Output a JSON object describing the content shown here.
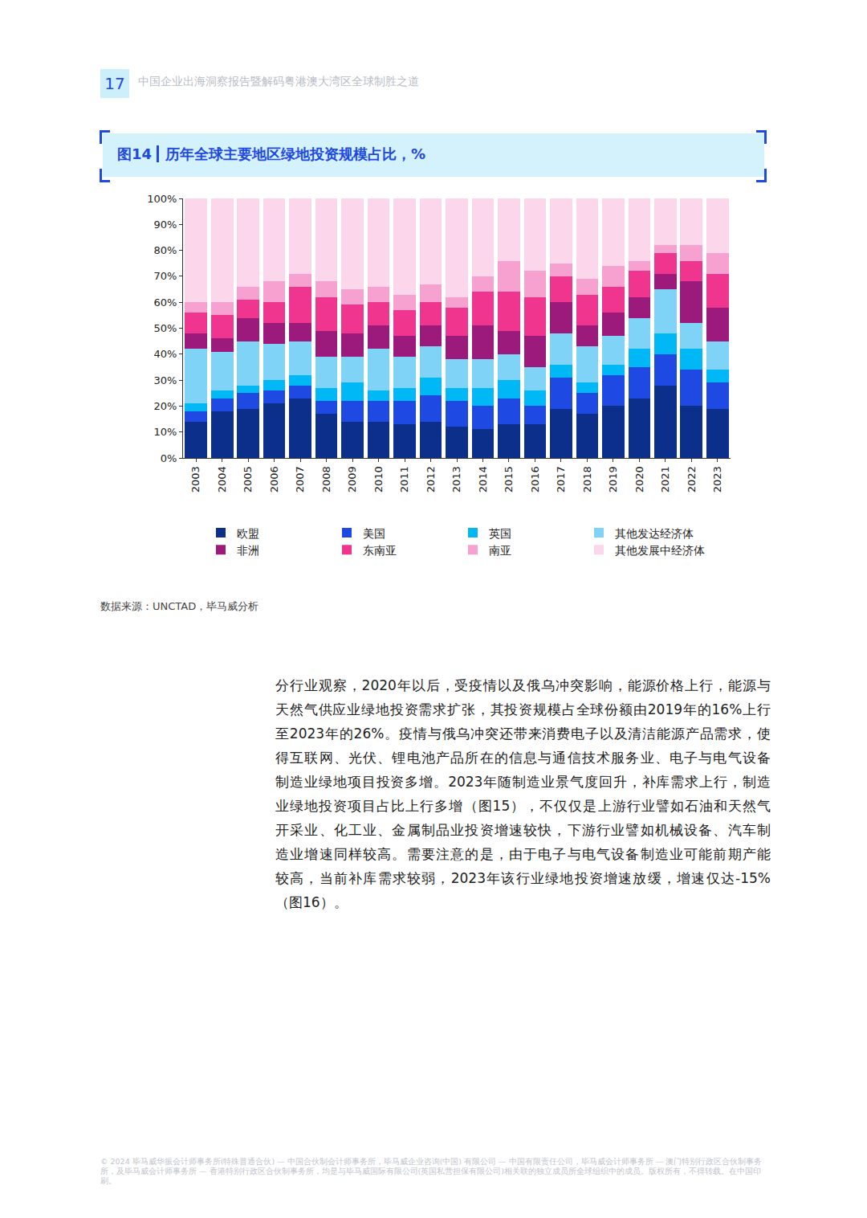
{
  "page_number": "17",
  "header_title": "中国企业出海洞察报告暨解码粤港澳大湾区全球制胜之道",
  "figure_label": "图14",
  "source": "数据来源：UNCTAD，毕马威分析",
  "paragraph": [
    "分行业观察，2020年以后，受疫情以及俄乌冲突影响，能源价格上行，能源与",
    "天然气供应业绿地投资需求扩张，其投资规模占全球份额由2019年的16%上行",
    "至2023年的26%。疫情与俄乌冲突还带来消费电子以及清洁能源产品需求，使",
    "得互联网、光伏、锂电池产品所在的信息与通信技术服务业、电子与电气设备",
    "制造业绿地项目投资多增。2023年随制造业景气度回升，补库需求上行，制造",
    "业绿地投资项目占比上行多增（图15），不仅仅是上游行业譬如石油和天然气",
    "开采业、化工业、金属制品业投资增速较快，下游行业譬如机械设备、汽车制",
    "造业增速同样较高。需要注意的是，由于电子与电气设备制造业可能前期产能",
    "较高，当前补库需求较弱，2023年该行业绿地投资增速放缓，增速仅达-15%",
    "（图16）。"
  ],
  "footer": "© 2024 毕马威华振会计师事务所(特殊普通合伙) — 中国合伙制会计师事务所，毕马威企业咨询(中国) 有限公司 — 中国有限责任公司，毕马威会计师事务所 — 澳门特别行政区合伙制事务所，及毕马威会计师事务所 — 香港特别行政区合伙制事务所，均是与毕马威国际有限公司(英国私营担保有限公司)相关联的独立成员所全球组织中的成员。版权所有，不得转载。在中国印刷。",
  "chart_data": {
    "type": "bar",
    "stacked": true,
    "title": "历年全球主要地区绿地投资规模占比，%",
    "categories": [
      "2003",
      "2004",
      "2005",
      "2006",
      "2007",
      "2008",
      "2009",
      "2010",
      "2011",
      "2012",
      "2013",
      "2014",
      "2015",
      "2016",
      "2017",
      "2018",
      "2019",
      "2020",
      "2021",
      "2022",
      "2023"
    ],
    "ylim": [
      0,
      100
    ],
    "yticks": [
      {
        "value": 0,
        "label": "0%"
      },
      {
        "value": 10,
        "label": "10%"
      },
      {
        "value": 20,
        "label": "20%"
      },
      {
        "value": 30,
        "label": "30%"
      },
      {
        "value": 40,
        "label": "40%"
      },
      {
        "value": 50,
        "label": "50%"
      },
      {
        "value": 60,
        "label": "60%"
      },
      {
        "value": 70,
        "label": "70%"
      },
      {
        "value": 80,
        "label": "80%"
      },
      {
        "value": 90,
        "label": "90%"
      },
      {
        "value": 100,
        "label": "100%"
      }
    ],
    "grid": false,
    "legend": "bottom",
    "series": [
      {
        "name": "欧盟",
        "color": "#0b2f8a",
        "values": [
          14,
          18,
          19,
          21,
          23,
          17,
          14,
          14,
          13,
          14,
          12,
          11,
          13,
          13,
          19,
          17,
          20,
          23,
          28,
          20,
          19
        ]
      },
      {
        "name": "美国",
        "color": "#1e49e2",
        "values": [
          4,
          5,
          6,
          5,
          5,
          5,
          8,
          8,
          9,
          10,
          10,
          9,
          10,
          7,
          12,
          8,
          12,
          12,
          12,
          14,
          10
        ]
      },
      {
        "name": "英国",
        "color": "#00b8f5",
        "values": [
          3,
          3,
          3,
          4,
          4,
          5,
          7,
          4,
          5,
          7,
          5,
          7,
          7,
          6,
          5,
          4,
          4,
          7,
          8,
          8,
          5
        ]
      },
      {
        "name": "其他发达经济体",
        "color": "#7fd3f7",
        "values": [
          21,
          15,
          17,
          14,
          13,
          12,
          10,
          16,
          12,
          12,
          11,
          11,
          10,
          9,
          12,
          14,
          11,
          12,
          17,
          10,
          11
        ]
      },
      {
        "name": "非洲",
        "color": "#9b1a7c",
        "values": [
          6,
          5,
          9,
          8,
          7,
          10,
          9,
          9,
          8,
          8,
          9,
          13,
          9,
          12,
          12,
          8,
          9,
          8,
          6,
          16,
          13
        ]
      },
      {
        "name": "东南亚",
        "color": "#f0358f",
        "values": [
          8,
          9,
          7,
          8,
          14,
          13,
          11,
          9,
          10,
          9,
          11,
          13,
          15,
          15,
          10,
          12,
          10,
          10,
          8,
          8,
          13
        ]
      },
      {
        "name": "南亚",
        "color": "#f7a1d0",
        "values": [
          4,
          5,
          5,
          8,
          5,
          6,
          6,
          6,
          6,
          7,
          4,
          6,
          12,
          10,
          5,
          6,
          8,
          4,
          3,
          6,
          8
        ]
      },
      {
        "name": "其他发展中经济体",
        "color": "#fcd6ea",
        "values": [
          40,
          40,
          34,
          32,
          29,
          32,
          35,
          34,
          37,
          33,
          38,
          30,
          24,
          28,
          25,
          31,
          26,
          24,
          18,
          18,
          21
        ]
      }
    ]
  }
}
